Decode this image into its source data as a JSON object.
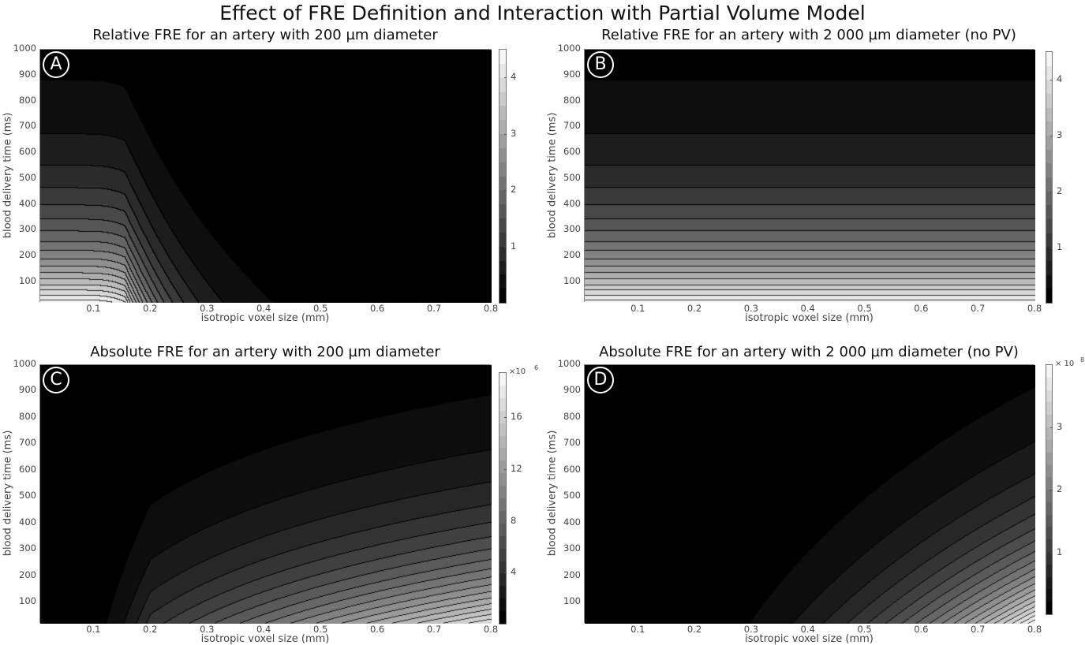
{
  "figure_title": "Effect of FRE Definition and Interaction with Partial Volume Model",
  "chart_data": [
    {
      "type": "heatmap",
      "panel_label": "A",
      "title": "Relative FRE for an artery with 200 µm diameter",
      "xlabel": "isotropic voxel size (mm)",
      "ylabel": "blood delivery time (ms)",
      "xlim": [
        0.005,
        0.8
      ],
      "ylim": [
        20,
        1000
      ],
      "xticks": [
        "0.1",
        "0.2",
        "0.3",
        "0.4",
        "0.5",
        "0.6",
        "0.7",
        "0.8"
      ],
      "yticks": [
        "100",
        "200",
        "300",
        "400",
        "500",
        "600",
        "700",
        "800",
        "900",
        "1000"
      ],
      "colorbar": {
        "range": [
          0,
          4.5
        ],
        "ticks": [
          "1",
          "2",
          "3",
          "4"
        ],
        "multiplier": "",
        "level_step": 0.25
      },
      "colormap": "gray"
    },
    {
      "type": "heatmap",
      "panel_label": "B",
      "title": "Relative FRE for an artery with 2 000 µm diameter (no PV)",
      "xlabel": "isotropic voxel size (mm)",
      "ylabel": "blood delivery time (ms)",
      "xlim": [
        0.005,
        0.8
      ],
      "ylim": [
        20,
        1000
      ],
      "xticks": [
        "0.1",
        "0.2",
        "0.3",
        "0.4",
        "0.5",
        "0.6",
        "0.7",
        "0.8"
      ],
      "yticks": [
        "100",
        "200",
        "300",
        "400",
        "500",
        "600",
        "700",
        "800",
        "900",
        "1000"
      ],
      "colorbar": {
        "range": [
          0,
          4.5
        ],
        "ticks": [
          "1",
          "2",
          "3",
          "4"
        ],
        "multiplier": "",
        "level_step": 0.25
      },
      "colormap": "gray"
    },
    {
      "type": "heatmap",
      "panel_label": "C",
      "title": "Absolute FRE for an artery with 200 µm diameter",
      "xlabel": "isotropic voxel size (mm)",
      "ylabel": "blood delivery time (ms)",
      "xlim": [
        0.005,
        0.8
      ],
      "ylim": [
        20,
        1000
      ],
      "xticks": [
        "0.1",
        "0.2",
        "0.3",
        "0.4",
        "0.5",
        "0.6",
        "0.7",
        "0.8"
      ],
      "yticks": [
        "100",
        "200",
        "300",
        "400",
        "500",
        "600",
        "700",
        "800",
        "900",
        "1000"
      ],
      "colorbar": {
        "range": [
          0,
          19.5
        ],
        "ticks": [
          "4",
          "8",
          "12",
          "16"
        ],
        "multiplier": "×10",
        "exponent": "6",
        "level_step": 1
      },
      "colormap": "gray"
    },
    {
      "type": "heatmap",
      "panel_label": "D",
      "title": "Absolute FRE for an artery with 2 000 µm diameter (no PV)",
      "xlabel": "isotropic voxel size (mm)",
      "ylabel": "blood delivery time (ms)",
      "xlim": [
        0.005,
        0.8
      ],
      "ylim": [
        20,
        1000
      ],
      "xticks": [
        "0.1",
        "0.2",
        "0.3",
        "0.4",
        "0.5",
        "0.6",
        "0.7",
        "0.8"
      ],
      "yticks": [
        "100",
        "200",
        "300",
        "400",
        "500",
        "600",
        "700",
        "800",
        "900",
        "1000"
      ],
      "colorbar": {
        "range": [
          0,
          4
        ],
        "ticks": [
          "1",
          "2",
          "3"
        ],
        "multiplier": "× 10",
        "exponent": "8",
        "level_step": 0.2
      },
      "colormap": "gray"
    }
  ]
}
